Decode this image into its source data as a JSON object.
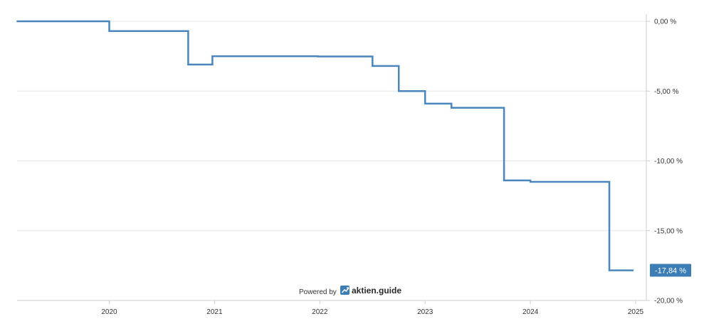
{
  "chart_data": {
    "type": "line",
    "title": "",
    "xlabel": "",
    "ylabel": "",
    "x_tick_labels": [
      "2020",
      "2021",
      "2022",
      "2023",
      "2024",
      "2025"
    ],
    "y_tick_labels": [
      "0,00 %",
      "-5,00 %",
      "-10,00 %",
      "-15,00 %",
      "-20,00 %"
    ],
    "ylim": [
      -20,
      0
    ],
    "xlim": [
      2019.12,
      2025.0
    ],
    "grid": "horizontal",
    "y_axis_side": "right",
    "line_color": "#4a86bd",
    "series": [
      {
        "step": true,
        "points": [
          [
            2019.12,
            0.0
          ],
          [
            2020.0,
            0.0
          ],
          [
            2020.0,
            -0.7
          ],
          [
            2020.75,
            -0.7
          ],
          [
            2020.75,
            -3.1
          ],
          [
            2020.98,
            -3.1
          ],
          [
            2020.98,
            -2.5
          ],
          [
            2021.98,
            -2.5
          ],
          [
            2021.98,
            -2.52
          ],
          [
            2022.5,
            -2.52
          ],
          [
            2022.5,
            -3.2
          ],
          [
            2022.75,
            -3.2
          ],
          [
            2022.75,
            -5.0
          ],
          [
            2023.0,
            -5.0
          ],
          [
            2023.0,
            -5.9
          ],
          [
            2023.25,
            -5.9
          ],
          [
            2023.25,
            -6.2
          ],
          [
            2023.75,
            -6.2
          ],
          [
            2023.75,
            -11.4
          ],
          [
            2024.0,
            -11.4
          ],
          [
            2024.0,
            -11.5
          ],
          [
            2024.75,
            -11.5
          ],
          [
            2024.75,
            -17.84
          ],
          [
            2024.98,
            -17.84
          ]
        ]
      }
    ],
    "last_value_label": "-17,84 %",
    "badge_color": "#3d7db5"
  },
  "watermark": {
    "powered_by": "Powered by",
    "brand": "aktien.guide",
    "icon": "trend-up-icon"
  }
}
